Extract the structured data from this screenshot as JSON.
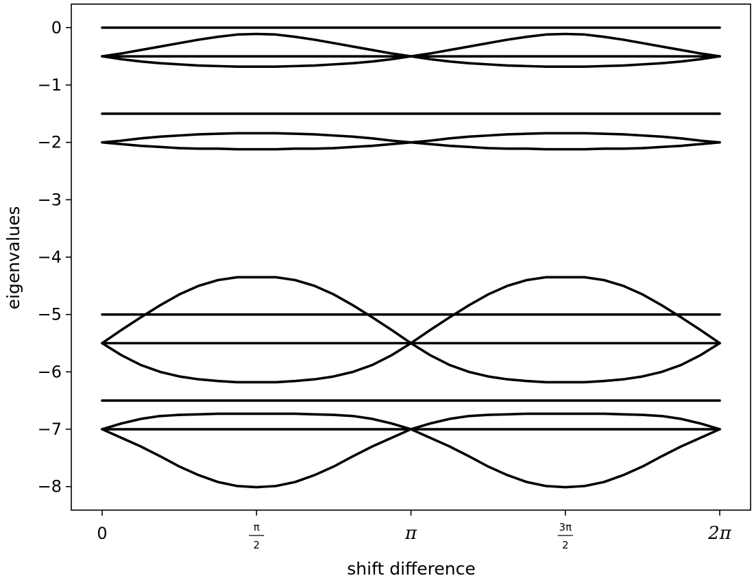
{
  "chart_data": {
    "type": "line",
    "xlabel": "shift difference",
    "ylabel": "eigenvalues",
    "xlim": [
      -0.314,
      6.597
    ],
    "ylim": [
      -8.41,
      0.41
    ],
    "grid": false,
    "legend": "none",
    "line_color": "#000000",
    "x_ticks": [
      {
        "value": 0,
        "label": "0",
        "style": "plain"
      },
      {
        "value": 1.5708,
        "num": "π",
        "den": "2",
        "style": "frac"
      },
      {
        "value": 3.14159,
        "label": "π",
        "style": "pi"
      },
      {
        "value": 4.71239,
        "num": "3π",
        "den": "2",
        "style": "frac"
      },
      {
        "value": 6.28319,
        "label": "2π",
        "style": "pi"
      }
    ],
    "y_ticks": [
      {
        "value": 0,
        "label": "0"
      },
      {
        "value": -1,
        "label": "−1"
      },
      {
        "value": -2,
        "label": "−2"
      },
      {
        "value": -3,
        "label": "−3"
      },
      {
        "value": -4,
        "label": "−4"
      },
      {
        "value": -5,
        "label": "−5"
      },
      {
        "value": -6,
        "label": "−6"
      },
      {
        "value": -7,
        "label": "−7"
      },
      {
        "value": -8,
        "label": "−8"
      }
    ],
    "x": [
      0,
      0.1963,
      0.3927,
      0.589,
      0.7854,
      0.9817,
      1.1781,
      1.3744,
      1.5708,
      1.7671,
      1.9635,
      2.1598,
      2.3562,
      2.5525,
      2.7489,
      2.9452,
      3.1416,
      3.3379,
      3.5343,
      3.7306,
      3.927,
      4.1233,
      4.3197,
      4.516,
      4.7124,
      4.9087,
      5.1051,
      5.3014,
      5.4978,
      5.6941,
      5.8905,
      6.0868,
      6.2832
    ],
    "series": [
      {
        "values": [
          0,
          0,
          0,
          0,
          0,
          0,
          0,
          0,
          0,
          0,
          0,
          0,
          0,
          0,
          0,
          0,
          0,
          0,
          0,
          0,
          0,
          0,
          0,
          0,
          0,
          0,
          0,
          0,
          0,
          0,
          0,
          0,
          0
        ]
      },
      {
        "values": [
          -0.5,
          -0.45,
          -0.39,
          -0.33,
          -0.27,
          -0.21,
          -0.16,
          -0.12,
          -0.11,
          -0.12,
          -0.16,
          -0.21,
          -0.27,
          -0.33,
          -0.39,
          -0.45,
          -0.5,
          -0.45,
          -0.39,
          -0.33,
          -0.27,
          -0.21,
          -0.16,
          -0.12,
          -0.11,
          -0.12,
          -0.16,
          -0.21,
          -0.27,
          -0.33,
          -0.39,
          -0.45,
          -0.5
        ]
      },
      {
        "values": [
          -0.5,
          -0.5,
          -0.5,
          -0.5,
          -0.5,
          -0.5,
          -0.5,
          -0.5,
          -0.5,
          -0.5,
          -0.5,
          -0.5,
          -0.5,
          -0.5,
          -0.5,
          -0.5,
          -0.5,
          -0.5,
          -0.5,
          -0.5,
          -0.5,
          -0.5,
          -0.5,
          -0.5,
          -0.5,
          -0.5,
          -0.5,
          -0.5,
          -0.5,
          -0.5,
          -0.5,
          -0.5,
          -0.5
        ]
      },
      {
        "values": [
          -0.5,
          -0.55,
          -0.59,
          -0.62,
          -0.64,
          -0.66,
          -0.67,
          -0.68,
          -0.68,
          -0.68,
          -0.67,
          -0.66,
          -0.64,
          -0.62,
          -0.59,
          -0.55,
          -0.5,
          -0.55,
          -0.59,
          -0.62,
          -0.64,
          -0.66,
          -0.67,
          -0.68,
          -0.68,
          -0.68,
          -0.67,
          -0.66,
          -0.64,
          -0.62,
          -0.59,
          -0.55,
          -0.5
        ]
      },
      {
        "values": [
          -1.5,
          -1.5,
          -1.5,
          -1.5,
          -1.5,
          -1.5,
          -1.5,
          -1.5,
          -1.5,
          -1.5,
          -1.5,
          -1.5,
          -1.5,
          -1.5,
          -1.5,
          -1.5,
          -1.5,
          -1.5,
          -1.5,
          -1.5,
          -1.5,
          -1.5,
          -1.5,
          -1.5,
          -1.5,
          -1.5,
          -1.5,
          -1.5,
          -1.5,
          -1.5,
          -1.5,
          -1.5,
          -1.5
        ]
      },
      {
        "values": [
          -2.0,
          -1.97,
          -1.93,
          -1.9,
          -1.88,
          -1.86,
          -1.85,
          -1.84,
          -1.84,
          -1.84,
          -1.85,
          -1.86,
          -1.88,
          -1.9,
          -1.93,
          -1.97,
          -2.0,
          -1.97,
          -1.93,
          -1.9,
          -1.88,
          -1.86,
          -1.85,
          -1.84,
          -1.84,
          -1.84,
          -1.85,
          -1.86,
          -1.88,
          -1.9,
          -1.93,
          -1.97,
          -2.0
        ]
      },
      {
        "values": [
          -2.0,
          -2.03,
          -2.06,
          -2.08,
          -2.1,
          -2.11,
          -2.11,
          -2.12,
          -2.12,
          -2.12,
          -2.11,
          -2.11,
          -2.1,
          -2.08,
          -2.06,
          -2.03,
          -2.0,
          -2.03,
          -2.06,
          -2.08,
          -2.1,
          -2.11,
          -2.11,
          -2.12,
          -2.12,
          -2.12,
          -2.11,
          -2.11,
          -2.1,
          -2.08,
          -2.06,
          -2.03,
          -2.0
        ]
      },
      {
        "values": [
          -5.5,
          -5.27,
          -5.05,
          -4.84,
          -4.65,
          -4.5,
          -4.4,
          -4.35,
          -4.35,
          -4.35,
          -4.4,
          -4.5,
          -4.65,
          -4.84,
          -5.05,
          -5.27,
          -5.5,
          -5.27,
          -5.05,
          -4.84,
          -4.65,
          -4.5,
          -4.4,
          -4.35,
          -4.35,
          -4.35,
          -4.4,
          -4.5,
          -4.65,
          -4.84,
          -5.05,
          -5.27,
          -5.5
        ]
      },
      {
        "values": [
          -5.0,
          -5.0,
          -5.0,
          -5.0,
          -5.0,
          -5.0,
          -5.0,
          -5.0,
          -5.0,
          -5.0,
          -5.0,
          -5.0,
          -5.0,
          -5.0,
          -5.0,
          -5.0,
          -5.0,
          -5.0,
          -5.0,
          -5.0,
          -5.0,
          -5.0,
          -5.0,
          -5.0,
          -5.0,
          -5.0,
          -5.0,
          -5.0,
          -5.0,
          -5.0,
          -5.0,
          -5.0,
          -5.0
        ]
      },
      {
        "values": [
          -5.5,
          -5.5,
          -5.5,
          -5.5,
          -5.5,
          -5.5,
          -5.5,
          -5.5,
          -5.5,
          -5.5,
          -5.5,
          -5.5,
          -5.5,
          -5.5,
          -5.5,
          -5.5,
          -5.5,
          -5.5,
          -5.5,
          -5.5,
          -5.5,
          -5.5,
          -5.5,
          -5.5,
          -5.5,
          -5.5,
          -5.5,
          -5.5,
          -5.5,
          -5.5,
          -5.5,
          -5.5,
          -5.5
        ]
      },
      {
        "values": [
          -5.5,
          -5.71,
          -5.88,
          -6.0,
          -6.08,
          -6.13,
          -6.16,
          -6.18,
          -6.18,
          -6.18,
          -6.16,
          -6.13,
          -6.08,
          -6.0,
          -5.88,
          -5.71,
          -5.5,
          -5.71,
          -5.88,
          -6.0,
          -6.08,
          -6.13,
          -6.16,
          -6.18,
          -6.18,
          -6.18,
          -6.16,
          -6.13,
          -6.08,
          -6.0,
          -5.88,
          -5.71,
          -5.5
        ]
      },
      {
        "values": [
          -6.5,
          -6.5,
          -6.5,
          -6.5,
          -6.5,
          -6.5,
          -6.5,
          -6.5,
          -6.5,
          -6.5,
          -6.5,
          -6.5,
          -6.5,
          -6.5,
          -6.5,
          -6.5,
          -6.5,
          -6.5,
          -6.5,
          -6.5,
          -6.5,
          -6.5,
          -6.5,
          -6.5,
          -6.5,
          -6.5,
          -6.5,
          -6.5,
          -6.5,
          -6.5,
          -6.5,
          -6.5,
          -6.5
        ]
      },
      {
        "values": [
          -7.0,
          -6.9,
          -6.82,
          -6.77,
          -6.75,
          -6.74,
          -6.73,
          -6.73,
          -6.73,
          -6.73,
          -6.73,
          -6.74,
          -6.75,
          -6.77,
          -6.82,
          -6.9,
          -7.0,
          -6.9,
          -6.82,
          -6.77,
          -6.75,
          -6.74,
          -6.73,
          -6.73,
          -6.73,
          -6.73,
          -6.73,
          -6.74,
          -6.75,
          -6.77,
          -6.82,
          -6.9,
          -7.0
        ]
      },
      {
        "values": [
          -7.0,
          -7.0,
          -7.0,
          -7.0,
          -7.0,
          -7.0,
          -7.0,
          -7.0,
          -7.0,
          -7.0,
          -7.0,
          -7.0,
          -7.0,
          -7.0,
          -7.0,
          -7.0,
          -7.0,
          -7.0,
          -7.0,
          -7.0,
          -7.0,
          -7.0,
          -7.0,
          -7.0,
          -7.0,
          -7.0,
          -7.0,
          -7.0,
          -7.0,
          -7.0,
          -7.0,
          -7.0,
          -7.0
        ]
      },
      {
        "values": [
          -7.0,
          -7.15,
          -7.3,
          -7.47,
          -7.65,
          -7.8,
          -7.92,
          -7.99,
          -8.01,
          -7.99,
          -7.92,
          -7.8,
          -7.65,
          -7.47,
          -7.3,
          -7.15,
          -7.0,
          -7.15,
          -7.3,
          -7.47,
          -7.65,
          -7.8,
          -7.92,
          -7.99,
          -8.01,
          -7.99,
          -7.92,
          -7.8,
          -7.65,
          -7.47,
          -7.3,
          -7.15,
          -7.0
        ]
      }
    ]
  }
}
